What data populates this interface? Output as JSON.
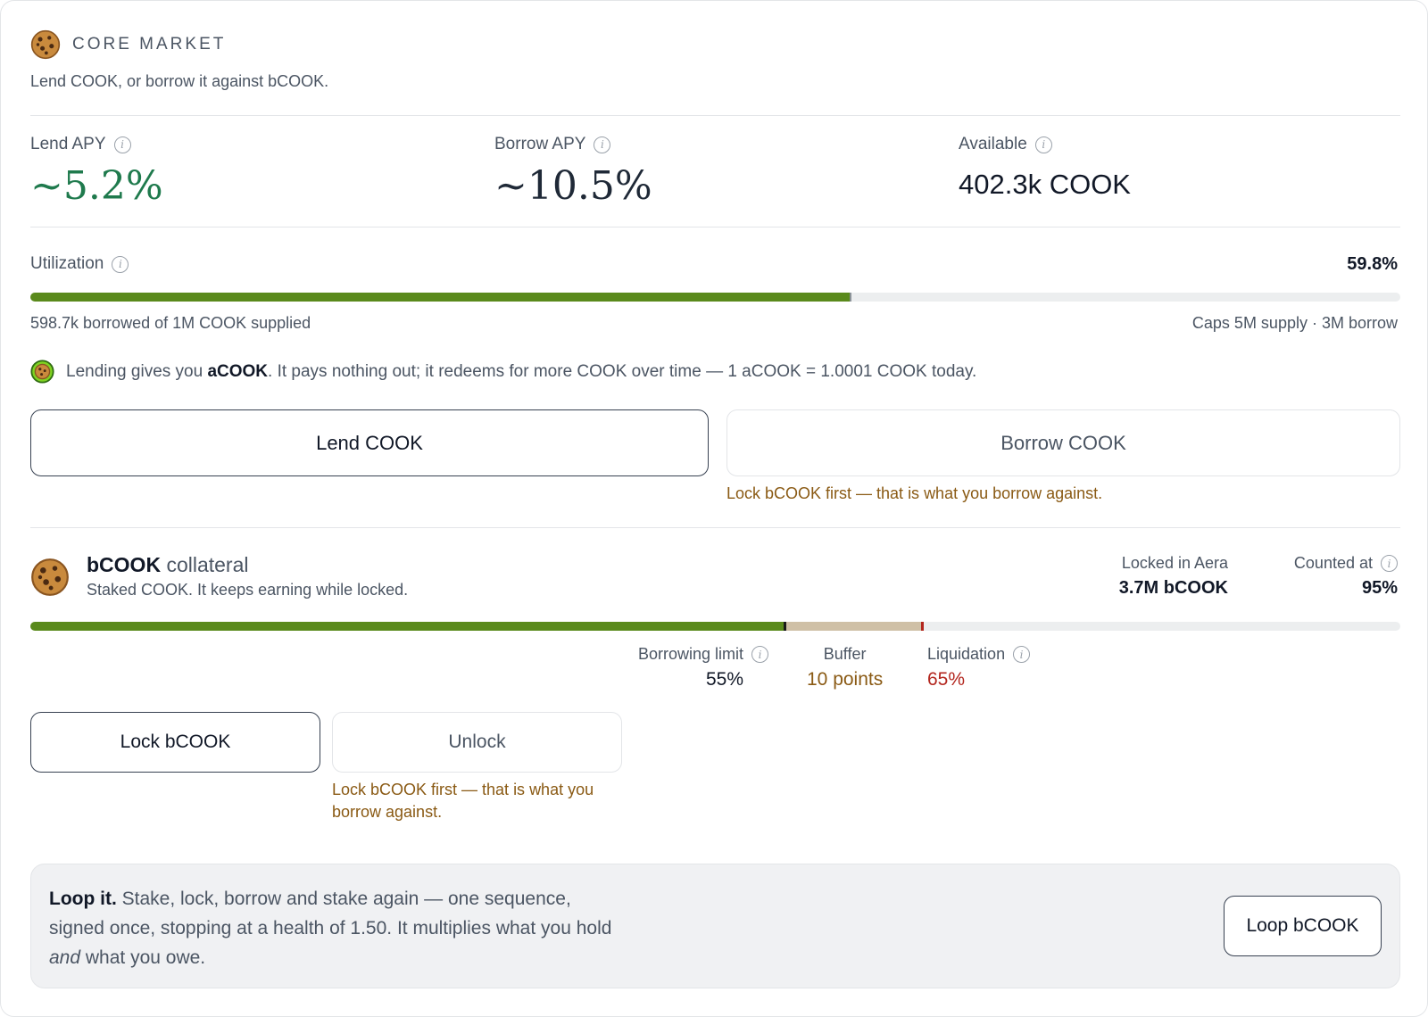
{
  "header": {
    "eyebrow": "CORE MARKET",
    "subtitle": "Lend COOK, or borrow it against bCOOK."
  },
  "stats": [
    {
      "label": "Lend APY",
      "value": "~5.2%"
    },
    {
      "label": "Borrow APY",
      "value": "~10.5%"
    },
    {
      "label": "Available",
      "value": "402.3k COOK"
    }
  ],
  "utilization": {
    "label": "Utilization",
    "value": "59.8%",
    "fraction": 0.598,
    "note_left": "598.7k borrowed of 1M COOK supplied",
    "note_right": "Caps 5M supply · 3M borrow"
  },
  "acook": {
    "prefix": "Lending gives you ",
    "token": "aCOOK",
    "suffix": ". It pays nothing out; it redeems for more COOK over time — 1 aCOOK = 1.0001 COOK today."
  },
  "actions": {
    "lend_label": "Lend COOK",
    "borrow_label": "Borrow COOK",
    "borrow_warning": "Lock bCOOK first — that is what you borrow against."
  },
  "collateral": {
    "token": "bCOOK",
    "title_suffix": " collateral",
    "subtitle": "Staked COOK. It keeps earning while locked.",
    "locked_label": "Locked in Aera",
    "locked_value": "3.7M bCOOK",
    "counted_label": "Counted at",
    "counted_value": "95%",
    "borrow_limit_label": "Borrowing limit",
    "borrow_limit_value": "55%",
    "borrow_limit_fraction": 0.55,
    "buffer_label": "Buffer",
    "buffer_value": "10 points",
    "liquidation_label": "Liquidation",
    "liquidation_value": "65%",
    "liquidation_fraction": 0.65,
    "lock_label": "Lock bCOOK",
    "unlock_label": "Unlock",
    "unlock_warning": "Lock bCOOK first — that is what you borrow against."
  },
  "loop": {
    "title": "Loop it.",
    "text_a": " Stake, lock, borrow and stake again — one sequence, signed once, stopping at a health of 1.50. It multiplies what you hold ",
    "text_em": "and",
    "text_b": " what you owe.",
    "button_label": "Loop bCOOK"
  },
  "colors": {
    "accent_green": "#5a8a1c",
    "apy_green": "#1f7a4d",
    "warning": "#8a5a14",
    "liquidation_red": "#b3261e",
    "buffer": "#cfc0a6"
  },
  "icons": {
    "header": "cookie-icon",
    "acook": "acook-coin-icon",
    "collateral": "cookie-icon",
    "info": "info-icon"
  }
}
